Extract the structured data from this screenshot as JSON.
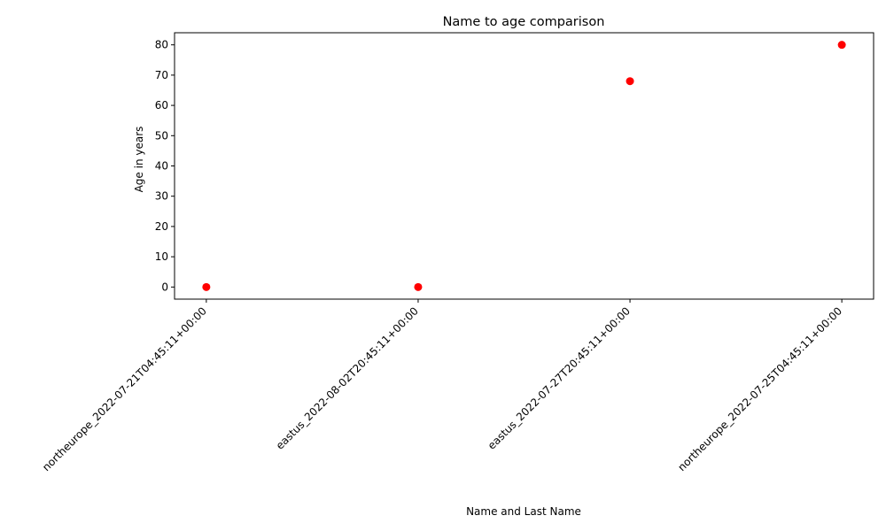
{
  "chart_data": {
    "type": "scatter",
    "title": "Name to age comparison",
    "xlabel": "Name and Last Name",
    "ylabel": "Age in years",
    "categories": [
      "northeurope_2022-07-21T04:45:11+00:00",
      "eastus_2022-08-02T20:45:11+00:00",
      "eastus_2022-07-27T20:45:11+00:00",
      "northeurope_2022-07-25T04:45:11+00:00"
    ],
    "values": [
      0,
      0,
      68,
      80
    ],
    "ylim": [
      -4,
      84
    ],
    "yticks": [
      0,
      10,
      20,
      30,
      40,
      50,
      60,
      70,
      80
    ],
    "marker_color": "#ff0000",
    "grid": false,
    "legend": "none"
  }
}
